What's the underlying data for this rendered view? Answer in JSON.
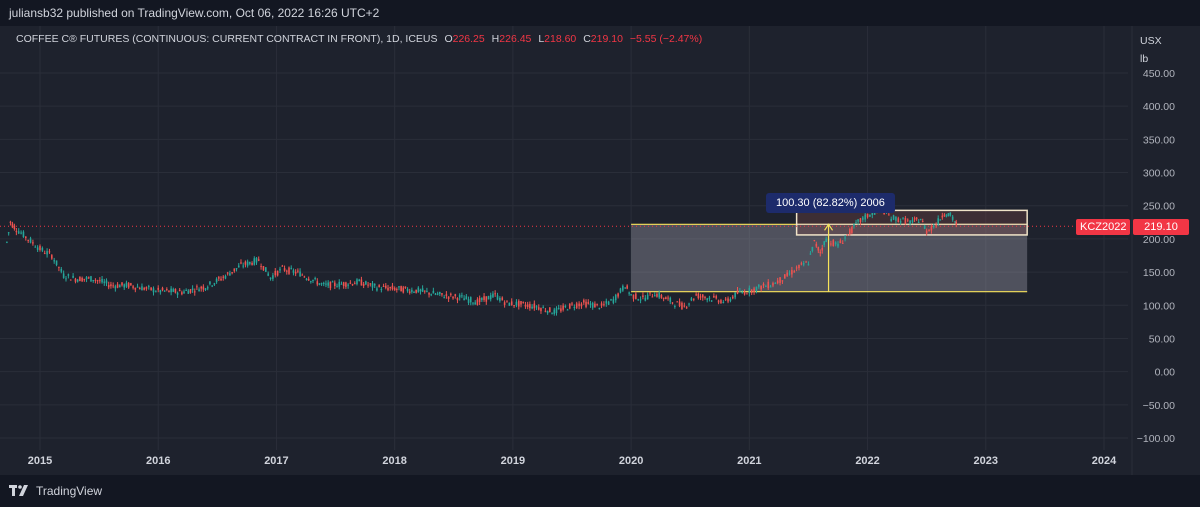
{
  "header": {
    "published_text": "juliansb32 published on TradingView.com, Oct 06, 2022 16:26 UTC+2"
  },
  "legend": {
    "symbol_text": "COFFEE C® FUTURES (CONTINUOUS: CURRENT CONTRACT IN FRONT), 1D, ICEUS",
    "open_key": "O",
    "open": "226.25",
    "high_key": "H",
    "high": "226.45",
    "low_key": "L",
    "low": "218.60",
    "close_key": "C",
    "close": "219.10",
    "change": "−5.55 (−2.47%)"
  },
  "axis": {
    "currency": "USX",
    "unit": "lb"
  },
  "price_tag": {
    "symbol": "KCZ2022",
    "value": "219.10",
    "color": "#f23645"
  },
  "measure": {
    "label": "100.30 (82.82%) 2006"
  },
  "footer": {
    "brand": "TradingView",
    "logo_icon": "tradingview-logo-icon"
  },
  "colors": {
    "background": "#1e222d",
    "up": "#26a69a",
    "down": "#ef5350",
    "grid": "#2a2e39",
    "rect_border_yellow": "#f7e35a",
    "rect_border_white": "#f0e3c8"
  },
  "chart_data": {
    "type": "line",
    "y_ticks": [
      "450.00",
      "400.00",
      "350.00",
      "300.00",
      "250.00",
      "200.00",
      "150.00",
      "100.00",
      "50.00",
      "0.00",
      "−50.00",
      "−100.00"
    ],
    "y_tick_values": [
      450,
      400,
      350,
      300,
      250,
      200,
      150,
      100,
      50,
      0,
      -50,
      -100
    ],
    "x_ticks": [
      "2015",
      "2016",
      "2017",
      "2018",
      "2019",
      "2020",
      "2021",
      "2022",
      "2023",
      "2024"
    ],
    "x_tick_values": [
      2015,
      2016,
      2017,
      2018,
      2019,
      2020,
      2021,
      2022,
      2023,
      2024
    ],
    "ylim": [
      -110,
      460
    ],
    "xlim": [
      2014.7,
      2024.3
    ],
    "grid": true,
    "current_price": 219.1,
    "series": [
      {
        "values": [
          [
            2014.72,
            195
          ],
          [
            2014.75,
            225
          ],
          [
            2014.8,
            215
          ],
          [
            2014.9,
            200
          ],
          [
            2015.0,
            185
          ],
          [
            2015.1,
            175
          ],
          [
            2015.2,
            145
          ],
          [
            2015.3,
            140
          ],
          [
            2015.45,
            140
          ],
          [
            2015.6,
            130
          ],
          [
            2015.75,
            130
          ],
          [
            2015.9,
            125
          ],
          [
            2016.0,
            122
          ],
          [
            2016.2,
            120
          ],
          [
            2016.4,
            128
          ],
          [
            2016.55,
            142
          ],
          [
            2016.7,
            160
          ],
          [
            2016.85,
            168
          ],
          [
            2016.95,
            142
          ],
          [
            2017.05,
            155
          ],
          [
            2017.2,
            148
          ],
          [
            2017.4,
            130
          ],
          [
            2017.55,
            132
          ],
          [
            2017.7,
            135
          ],
          [
            2017.85,
            127
          ],
          [
            2018.0,
            125
          ],
          [
            2018.2,
            122
          ],
          [
            2018.4,
            115
          ],
          [
            2018.55,
            112
          ],
          [
            2018.7,
            105
          ],
          [
            2018.85,
            115
          ],
          [
            2018.95,
            103
          ],
          [
            2019.05,
            102
          ],
          [
            2019.2,
            98
          ],
          [
            2019.35,
            90
          ],
          [
            2019.5,
            100
          ],
          [
            2019.6,
            103
          ],
          [
            2019.75,
            98
          ],
          [
            2019.85,
            108
          ],
          [
            2019.95,
            130
          ],
          [
            2020.0,
            115
          ],
          [
            2020.1,
            110
          ],
          [
            2020.2,
            118
          ],
          [
            2020.35,
            105
          ],
          [
            2020.45,
            98
          ],
          [
            2020.55,
            115
          ],
          [
            2020.7,
            110
          ],
          [
            2020.8,
            105
          ],
          [
            2020.9,
            118
          ],
          [
            2021.0,
            122
          ],
          [
            2021.1,
            128
          ],
          [
            2021.2,
            132
          ],
          [
            2021.3,
            142
          ],
          [
            2021.4,
            155
          ],
          [
            2021.5,
            165
          ],
          [
            2021.55,
            195
          ],
          [
            2021.6,
            180
          ],
          [
            2021.65,
            200
          ],
          [
            2021.75,
            190
          ],
          [
            2021.85,
            210
          ],
          [
            2021.92,
            225
          ],
          [
            2022.0,
            235
          ],
          [
            2022.08,
            242
          ],
          [
            2022.12,
            245
          ],
          [
            2022.2,
            232
          ],
          [
            2022.3,
            228
          ],
          [
            2022.38,
            225
          ],
          [
            2022.45,
            230
          ],
          [
            2022.5,
            212
          ],
          [
            2022.58,
            222
          ],
          [
            2022.65,
            240
          ],
          [
            2022.7,
            235
          ],
          [
            2022.74,
            226
          ],
          [
            2022.76,
            219.1
          ]
        ]
      }
    ],
    "annotations": {
      "wide_box": {
        "x_start": 2020.0,
        "x_end": 2023.35,
        "y_low": 120.5,
        "y_high": 222
      },
      "top_box": {
        "x_start": 2021.4,
        "x_end": 2023.35,
        "y_low": 206,
        "y_high": 243
      },
      "measure_arrow": {
        "x": 2021.67,
        "y_from": 120.5,
        "y_to": 222
      }
    }
  }
}
